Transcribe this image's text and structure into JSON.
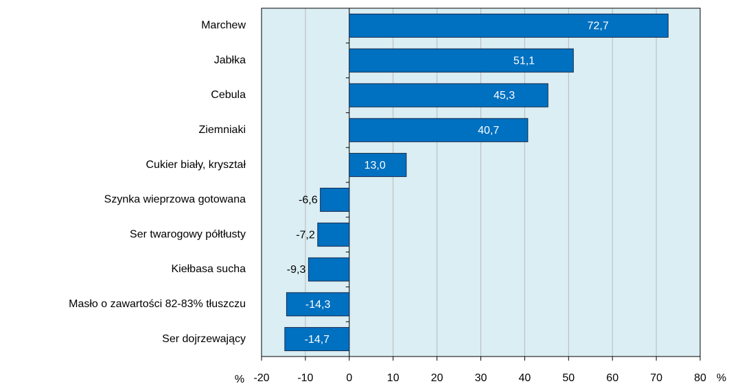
{
  "chart_data": {
    "type": "bar",
    "orientation": "horizontal",
    "categories": [
      "Marchew",
      "Jabłka",
      "Cebula",
      "Ziemniaki",
      "Cukier biały, kryształ",
      "Szynka wieprzowa gotowana",
      "Ser twarogowy półtłusty",
      "Kiełbasa sucha",
      "Masło o zawartości 82-83% tłuszczu",
      "Ser dojrzewający"
    ],
    "values": [
      72.7,
      51.1,
      45.3,
      40.7,
      13.0,
      -6.6,
      -7.2,
      -9.3,
      -14.3,
      -14.7
    ],
    "value_labels": [
      "72,7",
      "51,1",
      "45,3",
      "40,7",
      "13,0",
      "-6,6",
      "-7,2",
      "-9,3",
      "-14,3",
      "-14,7"
    ],
    "color": "#0070c0",
    "xlabel": "%",
    "xlim": [
      -20,
      80
    ],
    "xticks": [
      -20,
      -10,
      0,
      10,
      20,
      30,
      40,
      50,
      60,
      70,
      80
    ],
    "grid": true
  }
}
